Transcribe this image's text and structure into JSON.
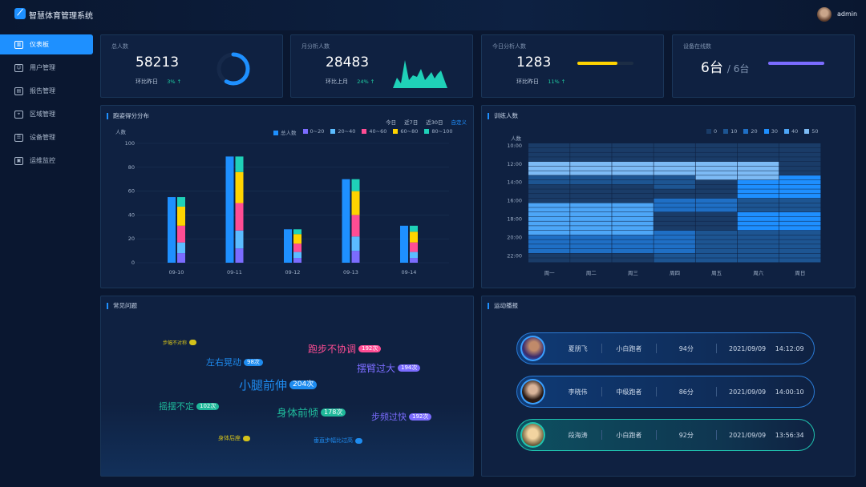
{
  "header": {
    "title": "智慧体育管理系统",
    "user": "admin",
    "logo_icon": "runner-icon"
  },
  "sidebar": {
    "items": [
      {
        "label": "仪表板",
        "icon": "chart-icon",
        "active": true
      },
      {
        "label": "用户管理",
        "icon": "users-icon"
      },
      {
        "label": "报告管理",
        "icon": "report-icon"
      },
      {
        "label": "区域管理",
        "icon": "location-icon"
      },
      {
        "label": "设备管理",
        "icon": "device-icon"
      },
      {
        "label": "运维监控",
        "icon": "monitor-icon"
      }
    ]
  },
  "stats": [
    {
      "label": "总人数",
      "value": "58213",
      "compare": "环比昨日",
      "change": "3%",
      "ring_percent": 58
    },
    {
      "label": "月分析人数",
      "value": "28483",
      "compare": "环比上月",
      "change": "24%"
    },
    {
      "label": "今日分析人数",
      "value": "1283",
      "compare": "环比昨日",
      "change": "11%",
      "progress_percent": 72
    },
    {
      "label": "设备在线数",
      "value": "6台",
      "total": "/ 6台",
      "progress_percent": 100
    }
  ],
  "score_panel": {
    "title": "跑姿得分分布",
    "tabs": [
      "今日",
      "近7日",
      "近30日",
      "自定义"
    ]
  },
  "heat_panel": {
    "title": "训练人数"
  },
  "chart_data": [
    {
      "type": "bar",
      "title": "跑姿得分分布",
      "ylabel": "人数",
      "ylim": [
        0,
        100
      ],
      "yticks": [
        0,
        20,
        40,
        60,
        80,
        100
      ],
      "categories": [
        "09-10",
        "09-11",
        "09-12",
        "09-13",
        "09-14"
      ],
      "series": [
        {
          "name": "总人数",
          "color": "#1e90ff",
          "values": [
            55,
            89,
            28,
            70,
            31
          ]
        },
        {
          "name": "0~20",
          "color": "#7b6cff",
          "values": [
            8,
            12,
            4,
            10,
            4
          ]
        },
        {
          "name": "20~40",
          "color": "#5bbcff",
          "values": [
            9,
            15,
            5,
            12,
            5
          ]
        },
        {
          "name": "40~60",
          "color": "#ff4d94",
          "values": [
            14,
            23,
            7,
            18,
            8
          ]
        },
        {
          "name": "60~80",
          "color": "#ffd400",
          "values": [
            16,
            26,
            8,
            20,
            9
          ]
        },
        {
          "name": "80~100",
          "color": "#1fd1b8",
          "values": [
            8,
            13,
            4,
            10,
            5
          ]
        }
      ]
    },
    {
      "type": "heatmap",
      "title": "训练人数",
      "ylabel": "人数",
      "x": [
        "周一",
        "周二",
        "周三",
        "周四",
        "周五",
        "周六",
        "周日"
      ],
      "yticks": [
        "10:00",
        "12:00",
        "14:00",
        "16:00",
        "18:00",
        "20:00",
        "22:00"
      ],
      "levels": [
        0,
        10,
        20,
        30,
        40,
        50
      ],
      "level_colors": [
        "#1a3c68",
        "#1d5592",
        "#1f6fc5",
        "#1e8fff",
        "#4da6f7",
        "#7dbbf5"
      ],
      "values": [
        [
          0,
          0,
          0,
          0,
          50,
          50,
          50,
          10,
          10,
          0,
          0,
          0,
          0,
          40,
          40,
          40,
          40,
          40,
          40,
          40,
          20,
          20,
          20,
          20,
          0,
          0
        ],
        [
          0,
          0,
          0,
          0,
          50,
          50,
          50,
          10,
          10,
          0,
          0,
          0,
          0,
          40,
          40,
          40,
          40,
          40,
          40,
          40,
          20,
          20,
          20,
          20,
          0,
          0
        ],
        [
          0,
          0,
          0,
          0,
          50,
          50,
          50,
          10,
          10,
          0,
          0,
          0,
          0,
          40,
          40,
          40,
          40,
          40,
          40,
          40,
          20,
          20,
          20,
          20,
          0,
          0
        ],
        [
          0,
          0,
          0,
          0,
          50,
          50,
          50,
          10,
          10,
          10,
          0,
          0,
          20,
          20,
          20,
          0,
          0,
          0,
          0,
          20,
          20,
          20,
          20,
          20,
          10,
          10
        ],
        [
          0,
          0,
          0,
          0,
          50,
          50,
          50,
          50,
          0,
          0,
          0,
          0,
          20,
          20,
          20,
          0,
          0,
          0,
          0,
          10,
          10,
          10,
          10,
          10,
          10,
          10
        ],
        [
          0,
          0,
          0,
          0,
          50,
          50,
          50,
          50,
          30,
          30,
          30,
          30,
          10,
          10,
          10,
          30,
          30,
          30,
          30,
          10,
          10,
          10,
          10,
          10,
          10,
          10
        ],
        [
          0,
          0,
          0,
          0,
          0,
          0,
          0,
          30,
          30,
          30,
          30,
          30,
          10,
          10,
          10,
          30,
          30,
          30,
          30,
          10,
          10,
          10,
          10,
          10,
          10,
          10
        ]
      ]
    }
  ],
  "issues": {
    "title": "常见问题",
    "words": [
      {
        "text": "步幅不对称",
        "count": "",
        "color": "#d4c21a"
      },
      {
        "text": "左右晃动",
        "count": "98次",
        "color": "#1e8cf0"
      },
      {
        "text": "跑步不协调",
        "count": "192次",
        "color": "#ff4d94"
      },
      {
        "text": "摆臂过大",
        "count": "194次",
        "color": "#7b6cff"
      },
      {
        "text": "小腿前伸",
        "count": "204次",
        "color": "#1e8cf0"
      },
      {
        "text": "摇摆不定",
        "count": "102次",
        "color": "#1fb89a"
      },
      {
        "text": "身体前倾",
        "count": "178次",
        "color": "#1fb89a"
      },
      {
        "text": "步频过快",
        "count": "192次",
        "color": "#7b6cff"
      },
      {
        "text": "身体后座",
        "count": "",
        "color": "#d4c21a"
      },
      {
        "text": "垂直步幅比过高",
        "count": "",
        "color": "#1e8cf0"
      }
    ]
  },
  "broadcast": {
    "title": "运动播报",
    "rows": [
      {
        "name": "夏朋飞",
        "level": "小白跑者",
        "score": "94分",
        "date": "2021/09/09",
        "time": "14:12:09"
      },
      {
        "name": "李晓伟",
        "level": "中级跑者",
        "score": "86分",
        "date": "2021/09/09",
        "time": "14:00:10"
      },
      {
        "name": "段海涛",
        "level": "小白跑者",
        "score": "92分",
        "date": "2021/09/09",
        "time": "13:56:34"
      }
    ]
  }
}
